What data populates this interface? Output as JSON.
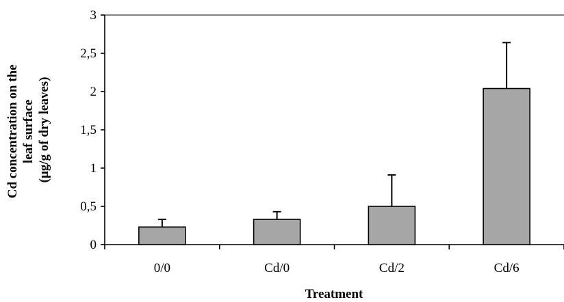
{
  "chart_data": {
    "type": "bar",
    "categories": [
      "0/0",
      "Cd/0",
      "Cd/2",
      "Cd/6"
    ],
    "values": [
      0.23,
      0.33,
      0.5,
      2.04
    ],
    "errors": [
      0.1,
      0.1,
      0.41,
      0.6
    ],
    "xlabel": "Treatment",
    "ylabel_lines": [
      "Cd concentration on the",
      "leaf surface",
      "(µg/g of dry leaves)"
    ],
    "ylim": [
      0,
      3
    ],
    "yticks": [
      0,
      0.5,
      1,
      1.5,
      2,
      2.5,
      3
    ],
    "ytick_labels": [
      "0",
      "0,5",
      "1",
      "1,5",
      "2",
      "2,5",
      "3"
    ],
    "grid": false,
    "bar_color": "#a6a6a6"
  }
}
